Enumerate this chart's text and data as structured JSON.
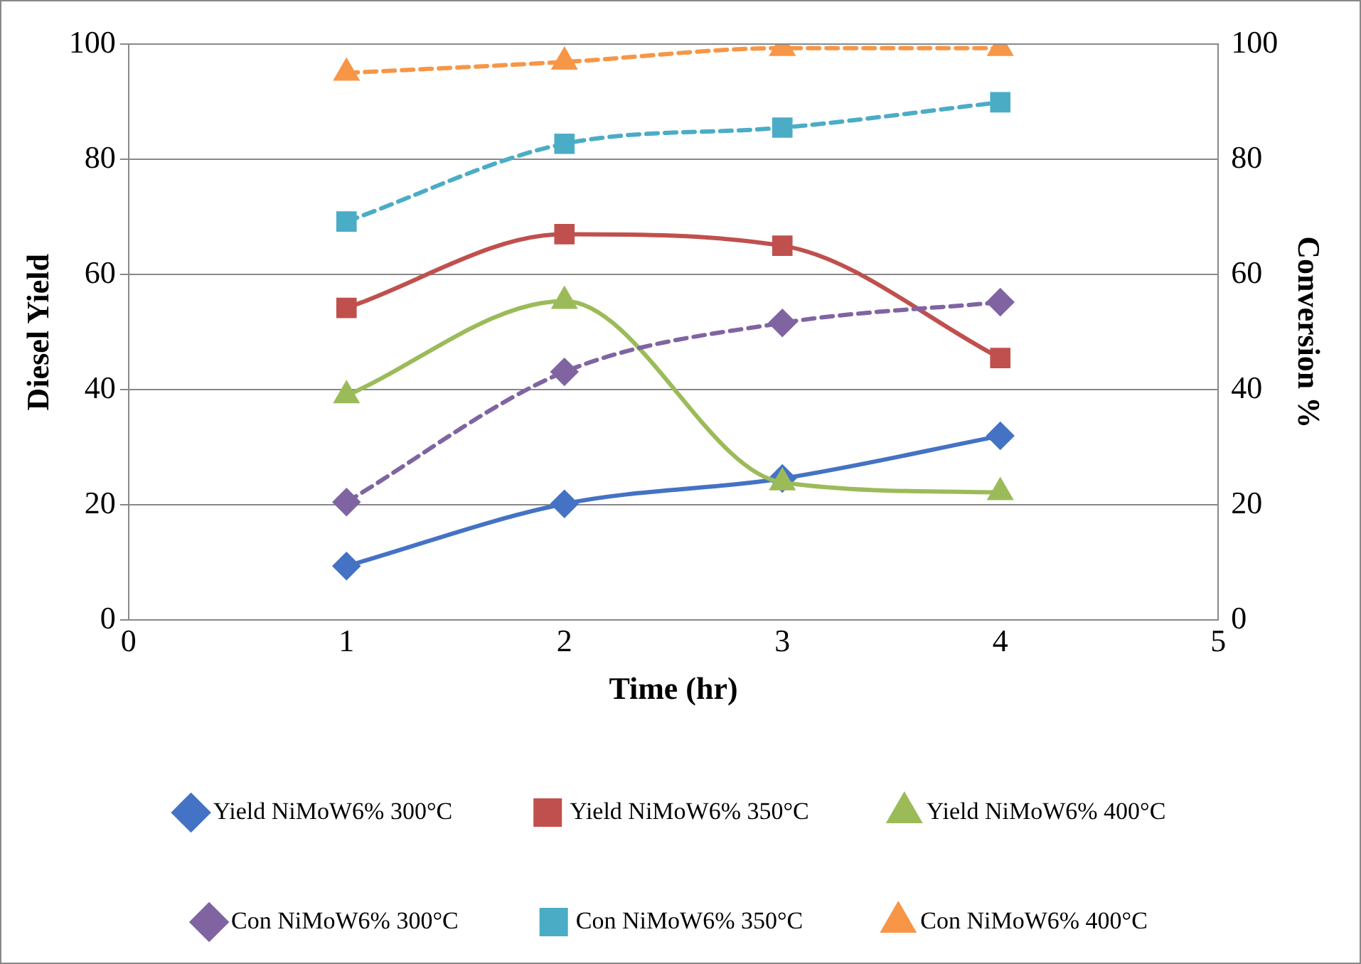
{
  "chart_data": {
    "type": "line",
    "xlabel": "Time (hr)",
    "ylabel": "Diesel Yield",
    "y2label": "Conversion %",
    "x": [
      1,
      2,
      3,
      4
    ],
    "xlim": [
      0,
      5
    ],
    "xticks": [
      0,
      1,
      2,
      3,
      4,
      5
    ],
    "ylim": [
      0,
      100
    ],
    "yticks": [
      0,
      20,
      40,
      60,
      80,
      100
    ],
    "y2lim": [
      0,
      100
    ],
    "y2ticks": [
      0,
      20,
      40,
      60,
      80,
      100
    ],
    "grid": "y",
    "legend": "bottom",
    "series": [
      {
        "name": "Yield NiMoW6% 300°C",
        "color": "#4472c4",
        "marker": "diamond",
        "line_style": "solid",
        "values": [
          9.4,
          20.2,
          24.6,
          32
        ]
      },
      {
        "name": "Yield NiMoW6% 350°C",
        "color": "#c0504d",
        "marker": "square",
        "line_style": "solid",
        "values": [
          54.2,
          67,
          65,
          45.5
        ]
      },
      {
        "name": "Yield NiMoW6% 400°C",
        "color": "#9bbb59",
        "marker": "triangle",
        "line_style": "solid",
        "values": [
          39,
          55.4,
          23.9,
          22.2
        ]
      },
      {
        "name": "Con NiMoW6% 300°C",
        "color": "#8064a2",
        "marker": "diamond",
        "line_style": "dashed",
        "axis": "y2",
        "values": [
          20.5,
          43.1,
          51.6,
          55.2
        ]
      },
      {
        "name": "Con NiMoW6% 350°C",
        "color": "#4bacc6",
        "marker": "square",
        "line_style": "dashed",
        "axis": "y2",
        "values": [
          69.2,
          82.7,
          85.5,
          89.9
        ]
      },
      {
        "name": "Con NiMoW6% 400°C",
        "color": "#f79646",
        "marker": "triangle",
        "line_style": "dashed",
        "axis": "y2",
        "values": [
          95,
          96.9,
          99.3,
          99.3
        ]
      }
    ]
  }
}
